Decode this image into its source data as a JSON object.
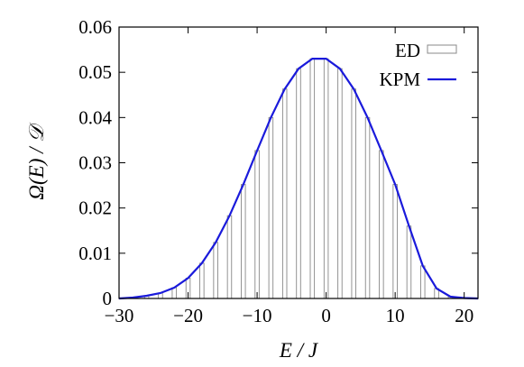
{
  "chart_data": {
    "type": "bar",
    "title": "",
    "xlabel": "E / J",
    "ylabel": "Ω(E) / 𝒟",
    "xlim": [
      -30,
      22
    ],
    "ylim": [
      0,
      0.06
    ],
    "xticks": [
      "−30",
      "−20",
      "−10",
      "0",
      "10",
      "20"
    ],
    "yticks": [
      "0",
      "0.01",
      "0.02",
      "0.03",
      "0.04",
      "0.05",
      "0.06"
    ],
    "grid": false,
    "legend_position": "top-right",
    "bin_width": 0.6,
    "series": [
      {
        "name": "ED",
        "style": "histogram",
        "color": "#888888",
        "x": [
          -26.0,
          -24.0,
          -22.0,
          -20.0,
          -18.0,
          -16.0,
          -14.0,
          -12.0,
          -10.0,
          -8.0,
          -6.0,
          -4.0,
          -2.0,
          0.0,
          2.0,
          4.0,
          6.0,
          8.0,
          10.0,
          12.0,
          14.0,
          16.0,
          18.0,
          20.0
        ],
        "values": [
          0.0006,
          0.0012,
          0.0024,
          0.0045,
          0.0078,
          0.0124,
          0.0183,
          0.0252,
          0.0327,
          0.04,
          0.0463,
          0.0508,
          0.053,
          0.053,
          0.0508,
          0.0463,
          0.04,
          0.0327,
          0.0252,
          0.016,
          0.0072,
          0.0022,
          0.0004,
          0.0001
        ]
      },
      {
        "name": "KPM",
        "style": "line",
        "color": "#1a1adb",
        "x": [
          -30,
          -28,
          -26,
          -24,
          -22,
          -20,
          -18,
          -16,
          -14,
          -12,
          -10,
          -8,
          -6,
          -4,
          -2,
          0,
          2,
          4,
          6,
          8,
          10,
          12,
          14,
          16,
          18,
          20,
          22
        ],
        "values": [
          0.0,
          0.0002,
          0.0006,
          0.0012,
          0.0024,
          0.0045,
          0.0078,
          0.0124,
          0.0183,
          0.0252,
          0.0327,
          0.04,
          0.0463,
          0.0508,
          0.053,
          0.053,
          0.0508,
          0.0463,
          0.04,
          0.0327,
          0.0252,
          0.016,
          0.0072,
          0.0022,
          0.0004,
          0.0001,
          0.0
        ]
      }
    ]
  }
}
